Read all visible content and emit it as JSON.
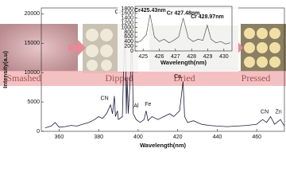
{
  "chart_data": [
    {
      "type": "line",
      "x_label": "Wavelength(nm)",
      "y_label": "Intensity(a.u)",
      "x": [
        353,
        356,
        358,
        360,
        363,
        366,
        369,
        372,
        375,
        378,
        380,
        382,
        384,
        386,
        387,
        388,
        388.5,
        389.5,
        390,
        392,
        393.4,
        394,
        394.4,
        395,
        396.2,
        396.8,
        397.5,
        399,
        401,
        403,
        404,
        405,
        407,
        410,
        413,
        416,
        418,
        421,
        422.7,
        423.5,
        425,
        428,
        432,
        436,
        440,
        445,
        450,
        455,
        460,
        463,
        465,
        467,
        469,
        472,
        474
      ],
      "series": [
        {
          "color": "#1c1c3a",
          "values": [
            600,
            900,
            1500,
            700,
            800,
            1000,
            900,
            1200,
            1500,
            2000,
            2500,
            2200,
            3000,
            4500,
            3000,
            6000,
            2500,
            3500,
            2000,
            2500,
            19500,
            3000,
            9000,
            3000,
            10000,
            17800,
            3000,
            2000,
            1500,
            2000,
            3500,
            1800,
            2500,
            2000,
            2500,
            3000,
            2500,
            3500,
            8500,
            2500,
            1500,
            1800,
            1200,
            1000,
            900,
            800,
            900,
            1000,
            1200,
            2000,
            1500,
            2500,
            1200,
            2000,
            900
          ]
        }
      ],
      "xlim": [
        351,
        474
      ],
      "xticks": [
        360,
        380,
        400,
        420,
        440,
        460
      ],
      "ylim": [
        0,
        21000
      ],
      "yticks": [
        0,
        5000,
        10000,
        15000,
        20000
      ],
      "annotations": [
        {
          "text": "Ca",
          "x": 390,
          "y": 20300
        },
        {
          "text": "CN",
          "x": 383,
          "y": 5600
        },
        {
          "text": "Al",
          "x": 399,
          "y": 4300
        },
        {
          "text": "Fe",
          "x": 405,
          "y": 4600
        },
        {
          "text": "Ca",
          "x": 420,
          "y": 9300
        },
        {
          "text": "CN",
          "x": 464,
          "y": 3300
        },
        {
          "text": "Zn",
          "x": 471,
          "y": 3300
        }
      ],
      "stages": [
        "Smashed",
        "Dipped",
        "Dried",
        "Pressed"
      ]
    },
    {
      "type": "line",
      "x_label": "Wavelength(nm)",
      "x": [
        424.6,
        424.9,
        425.2,
        425.43,
        425.7,
        426,
        426.3,
        426.6,
        426.9,
        427.2,
        427.48,
        427.8,
        428.1,
        428.4,
        428.7,
        428.97,
        429.2,
        429.5,
        429.8,
        430.1,
        430.4
      ],
      "series": [
        {
          "color": "#555555",
          "values": [
            350,
            450,
            700,
            1550,
            600,
            400,
            500,
            350,
            450,
            600,
            1400,
            550,
            400,
            500,
            450,
            1100,
            500,
            350,
            400,
            300,
            350
          ]
        }
      ],
      "xlim": [
        424.5,
        430.5
      ],
      "xticks": [
        425,
        426,
        427,
        428,
        429,
        430
      ],
      "ylim": [
        0,
        1900
      ],
      "yticks": [
        0,
        200,
        400,
        600,
        800,
        1000,
        1200,
        1400,
        1600,
        1800
      ],
      "annotations": [
        {
          "text": "Cr425.43nm",
          "x": 425.43,
          "y": 1720
        },
        {
          "text": "Cr 427.48nm",
          "x": 427.48,
          "y": 1600
        },
        {
          "text": "Cr 428.97nm",
          "x": 428.97,
          "y": 1450
        }
      ]
    }
  ]
}
